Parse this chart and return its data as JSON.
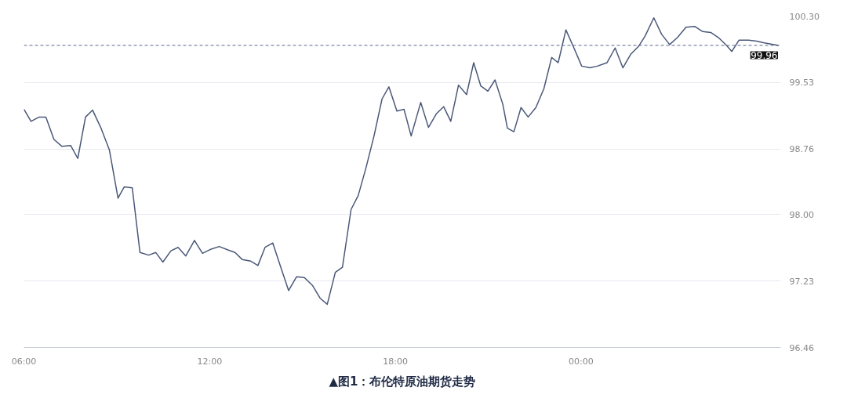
{
  "chart_data": {
    "type": "line",
    "title": "▲图1：布伦特原油期货走势",
    "x": [
      6.0,
      6.23,
      6.49,
      6.71,
      6.97,
      7.23,
      7.51,
      7.74,
      7.99,
      8.22,
      8.48,
      8.76,
      9.04,
      9.24,
      9.5,
      9.75,
      10.03,
      10.26,
      10.49,
      10.75,
      10.98,
      11.23,
      11.51,
      11.77,
      12.05,
      12.31,
      12.59,
      12.82,
      13.05,
      13.33,
      13.56,
      13.79,
      14.04,
      14.27,
      14.55,
      14.81,
      15.06,
      15.32,
      15.57,
      15.8,
      16.06,
      16.29,
      16.57,
      16.8,
      17.05,
      17.31,
      17.57,
      17.79,
      18.05,
      18.28,
      18.51,
      18.82,
      19.07,
      19.33,
      19.56,
      19.79,
      20.04,
      20.3,
      20.53,
      20.76,
      20.99,
      21.22,
      21.47,
      21.62,
      21.83,
      22.06,
      22.29,
      22.54,
      22.8,
      23.05,
      23.26,
      23.51,
      23.77,
      24.02,
      24.28,
      24.53,
      24.84,
      25.1,
      25.35,
      25.61,
      25.86,
      26.07,
      26.35,
      26.6,
      26.86,
      27.11,
      27.39,
      27.67,
      27.93,
      28.19,
      28.44,
      28.7,
      28.87,
      29.1,
      29.41,
      29.67,
      29.92,
      30.38
    ],
    "series": [
      {
        "color": "#4a5878",
        "values": [
          99.22,
          99.08,
          99.13,
          99.13,
          98.87,
          98.79,
          98.8,
          98.65,
          99.13,
          99.21,
          99.01,
          98.75,
          98.19,
          98.32,
          98.31,
          97.56,
          97.53,
          97.56,
          97.45,
          97.58,
          97.62,
          97.52,
          97.7,
          97.55,
          97.6,
          97.63,
          97.59,
          97.56,
          97.48,
          97.46,
          97.41,
          97.62,
          97.67,
          97.42,
          97.12,
          97.28,
          97.27,
          97.18,
          97.03,
          96.96,
          97.33,
          97.39,
          98.06,
          98.22,
          98.54,
          98.91,
          99.34,
          99.48,
          99.2,
          99.22,
          98.91,
          99.3,
          99.01,
          99.17,
          99.25,
          99.08,
          99.5,
          99.39,
          99.76,
          99.49,
          99.43,
          99.56,
          99.28,
          99.0,
          98.96,
          99.24,
          99.13,
          99.24,
          99.46,
          99.82,
          99.76,
          100.14,
          99.93,
          99.72,
          99.7,
          99.72,
          99.76,
          99.93,
          99.7,
          99.86,
          99.95,
          100.07,
          100.28,
          100.09,
          99.97,
          100.05,
          100.17,
          100.18,
          100.12,
          100.11,
          100.05,
          99.96,
          99.89,
          100.02,
          100.02,
          100.01,
          99.99,
          99.96
        ]
      }
    ],
    "xlim": [
      6,
      30.45
    ],
    "xticks": [
      {
        "value": 6,
        "label": "06:00"
      },
      {
        "value": 12,
        "label": "12:00"
      },
      {
        "value": 18,
        "label": "18:00"
      },
      {
        "value": 24,
        "label": "00:00"
      }
    ],
    "ylim": [
      96.46,
      100.3
    ],
    "yticks": [
      {
        "value": 96.46,
        "label": "96.46"
      },
      {
        "value": 97.23,
        "label": "97.23"
      },
      {
        "value": 98.0,
        "label": "98.00"
      },
      {
        "value": 98.76,
        "label": "98.76"
      },
      {
        "value": 99.53,
        "label": "99.53"
      },
      {
        "value": 100.3,
        "label": "100.30"
      }
    ],
    "grid": "y",
    "ref_lines": [
      {
        "axis": "y",
        "value": 99.96,
        "label": "99.96",
        "color": "#5a6a8a",
        "line_style": "dashed"
      }
    ]
  }
}
